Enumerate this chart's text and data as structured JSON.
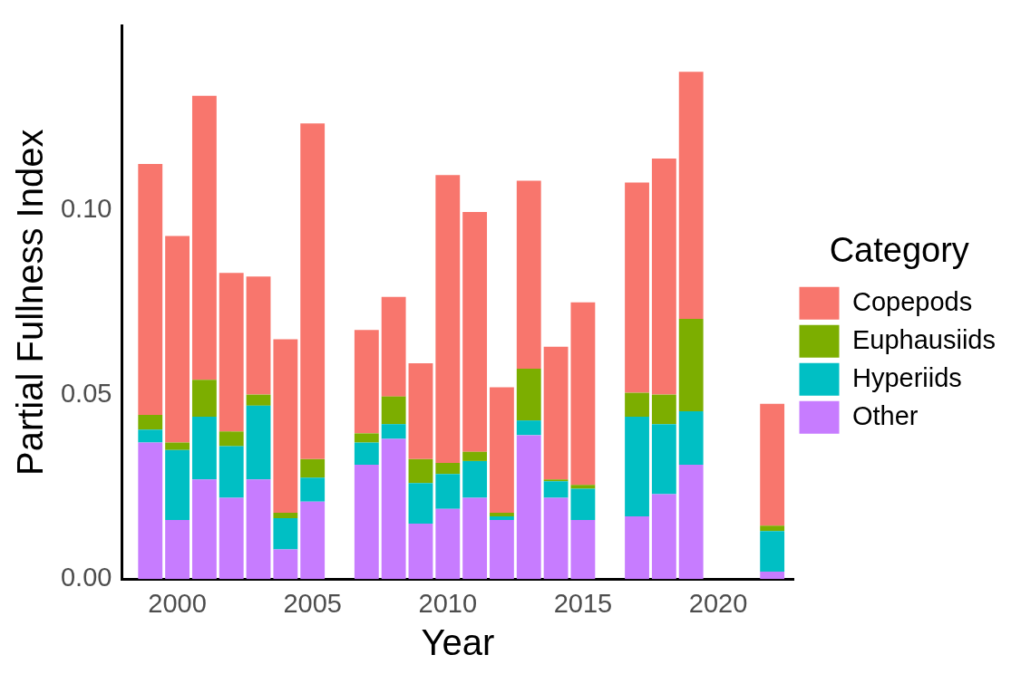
{
  "chart_data": {
    "type": "bar",
    "xlabel": "Year",
    "ylabel": "Partial Fullness Index",
    "legend_title": "Category",
    "x": [
      1999,
      2000,
      2001,
      2002,
      2003,
      2004,
      2005,
      2007,
      2008,
      2009,
      2010,
      2011,
      2012,
      2013,
      2014,
      2015,
      2017,
      2018,
      2019,
      2022
    ],
    "series": [
      {
        "name": "Other",
        "color": "#c77cff",
        "values": [
          0.037,
          0.016,
          0.027,
          0.022,
          0.027,
          0.008,
          0.021,
          0.031,
          0.038,
          0.015,
          0.019,
          0.022,
          0.016,
          0.039,
          0.022,
          0.016,
          0.017,
          0.023,
          0.031,
          0.002
        ]
      },
      {
        "name": "Hyperiids",
        "color": "#00bfc4",
        "values": [
          0.0035,
          0.019,
          0.017,
          0.014,
          0.02,
          0.0085,
          0.0065,
          0.006,
          0.004,
          0.011,
          0.0095,
          0.01,
          0.001,
          0.004,
          0.0045,
          0.0085,
          0.027,
          0.019,
          0.0145,
          0.011
        ]
      },
      {
        "name": "Euphausiids",
        "color": "#7cae00",
        "values": [
          0.004,
          0.002,
          0.01,
          0.004,
          0.003,
          0.0015,
          0.005,
          0.0025,
          0.0075,
          0.0065,
          0.003,
          0.0025,
          0.001,
          0.014,
          0.0005,
          0.001,
          0.0065,
          0.008,
          0.025,
          0.0015
        ]
      },
      {
        "name": "Copepods",
        "color": "#f8766d",
        "values": [
          0.068,
          0.056,
          0.077,
          0.043,
          0.032,
          0.047,
          0.091,
          0.028,
          0.027,
          0.026,
          0.078,
          0.065,
          0.034,
          0.051,
          0.036,
          0.0495,
          0.057,
          0.064,
          0.067,
          0.033
        ]
      }
    ],
    "stacked": true,
    "xlim": [
      1997.95,
      2022.8
    ],
    "xticks": [
      2000,
      2005,
      2010,
      2015,
      2020
    ],
    "ylim": [
      0,
      0.15
    ],
    "yticks": [
      {
        "value": 0,
        "label": "0.00"
      },
      {
        "value": 0.05,
        "label": "0.05"
      },
      {
        "value": 0.1,
        "label": "0.10"
      }
    ],
    "grid": false,
    "legend": "right"
  }
}
